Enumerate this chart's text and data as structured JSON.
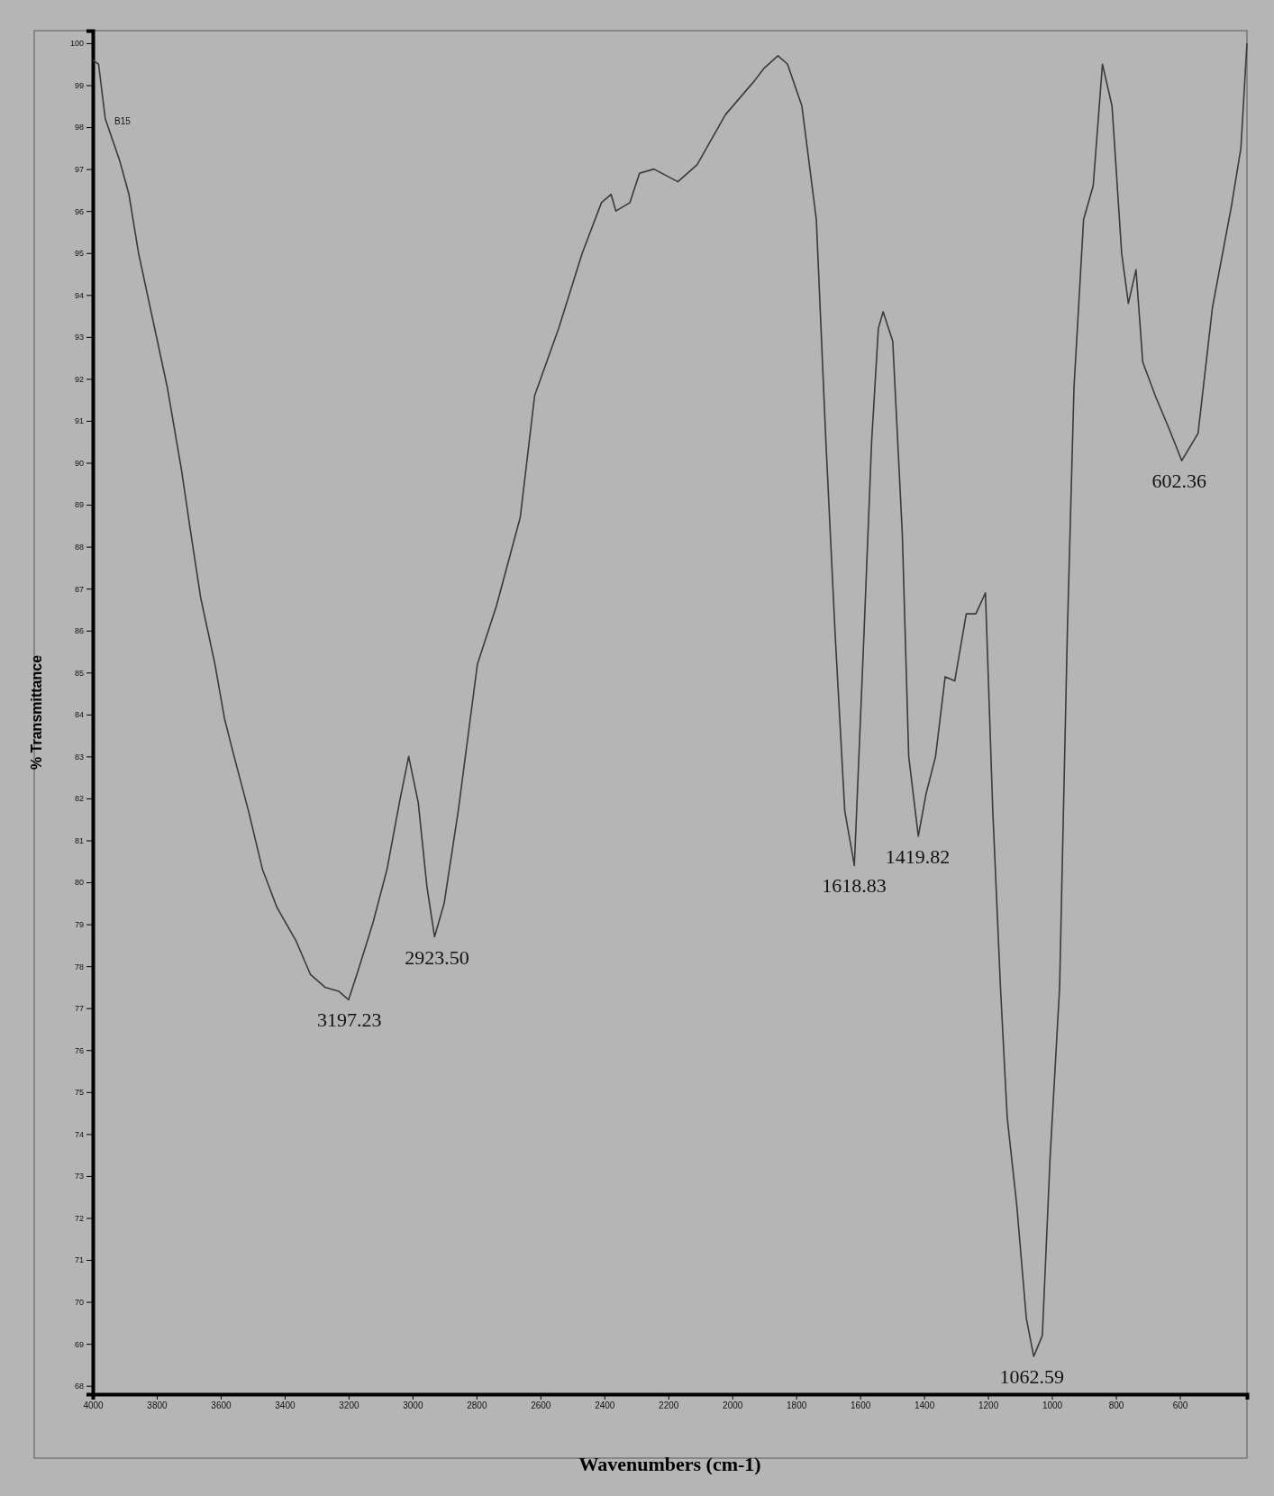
{
  "chart_data": {
    "type": "line",
    "xlabel": "Wavenumbers (cm-1)",
    "ylabel": "% Transmittance",
    "xlim": [
      4000,
      390
    ],
    "ylim": [
      67.8,
      100.3
    ],
    "xticks": [
      4000,
      3800,
      3600,
      3400,
      3200,
      3000,
      2800,
      2600,
      2400,
      2200,
      2000,
      1800,
      1600,
      1400,
      1200,
      1000,
      800,
      600
    ],
    "yticks": [
      68,
      69,
      70,
      71,
      72,
      73,
      74,
      75,
      76,
      77,
      78,
      79,
      80,
      81,
      82,
      83,
      84,
      85,
      86,
      87,
      88,
      89,
      90,
      91,
      92,
      93,
      94,
      95,
      96,
      97,
      98,
      99,
      100
    ],
    "grid": false,
    "marker": "none",
    "line_style": "solid",
    "series": [
      {
        "color": "#3a3a3a",
        "x": [
          4000,
          3982,
          3961,
          3916,
          3887,
          3857,
          3812,
          3767,
          3722,
          3693,
          3663,
          3618,
          3588,
          3558,
          3513,
          3469,
          3424,
          3364,
          3319,
          3274,
          3230,
          3200,
          3170,
          3125,
          3080,
          3041,
          3012,
          2982,
          2955,
          2931,
          2901,
          2857,
          2797,
          2737,
          2663,
          2618,
          2543,
          2469,
          2409,
          2379,
          2364,
          2320,
          2290,
          2245,
          2170,
          2110,
          2021,
          1931,
          1901,
          1857,
          1827,
          1782,
          1737,
          1707,
          1678,
          1648,
          1618,
          1588,
          1564,
          1543,
          1528,
          1498,
          1468,
          1448,
          1418,
          1394,
          1364,
          1334,
          1304,
          1268,
          1238,
          1208,
          1185,
          1161,
          1140,
          1110,
          1080,
          1057,
          1030,
          1006,
          976,
          952,
          931,
          901,
          871,
          842,
          812,
          782,
          761,
          737,
          716,
          677,
          633,
          594,
          543,
          498,
          439,
          409,
          390
        ],
        "values": [
          99.6,
          99.5,
          98.2,
          97.2,
          96.4,
          95.0,
          93.4,
          91.8,
          89.8,
          88.3,
          86.8,
          85.2,
          83.9,
          83.0,
          81.7,
          80.3,
          79.4,
          78.6,
          77.8,
          77.5,
          77.4,
          77.2,
          77.9,
          79.0,
          80.3,
          81.9,
          83.0,
          81.9,
          79.9,
          78.7,
          79.5,
          81.7,
          85.2,
          86.6,
          88.7,
          91.6,
          93.2,
          95.0,
          96.2,
          96.4,
          96.0,
          96.2,
          96.9,
          97.0,
          96.7,
          97.1,
          98.3,
          99.1,
          99.4,
          99.7,
          99.5,
          98.5,
          95.8,
          90.5,
          85.9,
          81.7,
          80.4,
          85.9,
          90.5,
          93.2,
          93.6,
          92.9,
          88.3,
          83.0,
          81.1,
          82.1,
          83.0,
          84.9,
          84.8,
          86.4,
          86.4,
          86.9,
          81.7,
          77.5,
          74.4,
          72.3,
          69.6,
          68.7,
          69.2,
          73.4,
          77.5,
          85.9,
          91.8,
          95.8,
          96.6,
          99.5,
          98.5,
          95.0,
          93.8,
          94.6,
          92.4,
          91.6,
          90.8,
          90.05,
          90.7,
          93.7,
          96.1,
          97.5,
          100
        ]
      }
    ],
    "annotations": [
      "B15",
      {
        "text": "3197.23",
        "x": 3197.23,
        "y": 77.2
      },
      {
        "text": "2923.50",
        "x": 2923.5,
        "y": 78.7
      },
      {
        "text": "1618.83",
        "x": 1618.83,
        "y": 80.4
      },
      {
        "text": "1419.82",
        "x": 1419.82,
        "y": 81.1
      },
      {
        "text": "1062.59",
        "x": 1062.59,
        "y": 68.7
      },
      {
        "text": "602.36",
        "x": 602.36,
        "y": 90.05
      }
    ]
  }
}
